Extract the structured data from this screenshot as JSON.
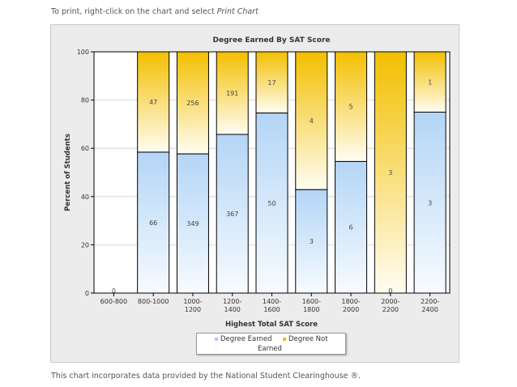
{
  "page": {
    "top_note_prefix": "To print, right-click on the chart and select ",
    "top_note_emphasis": "Print Chart",
    "bottom_note": "This chart incorporates data provided by the National Student Clearinghouse ®."
  },
  "colors": {
    "earned": "#b8d8f6",
    "not_earned": "#f3c000",
    "axis": "#000000",
    "grid": "#cfcfcf"
  },
  "chart_data": {
    "type": "bar",
    "stacked": "percent",
    "title": "Degree Earned By SAT Score",
    "xlabel": "Highest Total SAT Score",
    "ylabel": "Percent of Students",
    "ylim": [
      0,
      100
    ],
    "yticks": [
      0,
      20,
      40,
      60,
      80,
      100
    ],
    "grid": true,
    "legend_position": "bottom",
    "categories": [
      "600-800",
      "800-1000",
      "1000-1200",
      "1200-1400",
      "1400-1600",
      "1600-1800",
      "1800-2000",
      "2000-2200",
      "2200-2400"
    ],
    "series": [
      {
        "name": "Degree Earned",
        "values": [
          0,
          66,
          349,
          367,
          50,
          3,
          6,
          0,
          3
        ]
      },
      {
        "name": "Degree Not Earned",
        "values": [
          0,
          47,
          256,
          191,
          17,
          4,
          5,
          3,
          1
        ]
      }
    ]
  }
}
